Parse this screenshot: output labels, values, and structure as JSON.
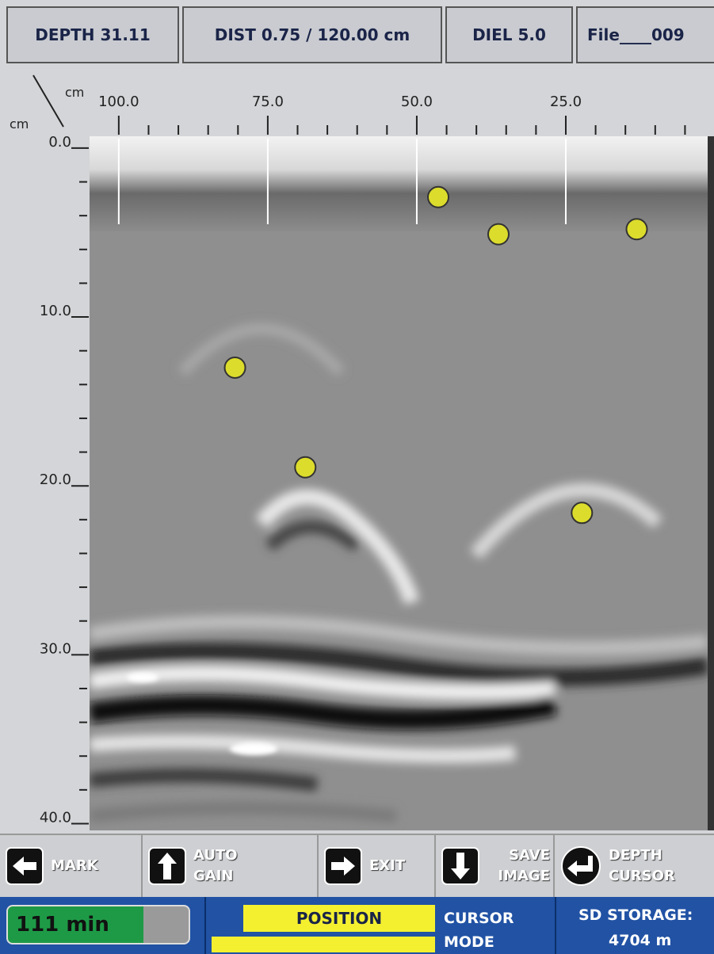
{
  "header": {
    "depth": "DEPTH 31.11",
    "dist": "DIST 0.75 / 120.00 cm",
    "diel": "DIEL 5.0",
    "file": "File____009"
  },
  "scan": {
    "x_unit": "cm",
    "y_unit": "cm",
    "xlim": [
      104.9,
      1.2
    ],
    "ylim": [
      -0.7,
      40.4
    ],
    "xticks": [
      {
        "value": 100,
        "label": "100.0"
      },
      {
        "value": 75,
        "label": "75.0"
      },
      {
        "value": 50,
        "label": "50.0"
      },
      {
        "value": 25,
        "label": "25.0"
      }
    ],
    "x_minor_ticks": [
      95,
      90,
      85,
      80,
      70,
      65,
      60,
      55,
      45,
      40,
      35,
      30,
      20,
      15,
      10,
      5
    ],
    "yticks": [
      {
        "value": 0,
        "label": "0.0"
      },
      {
        "value": 10,
        "label": "10.0"
      },
      {
        "value": 20,
        "label": "20.0"
      },
      {
        "value": 30,
        "label": "30.0"
      },
      {
        "value": 40,
        "label": "40.0"
      }
    ],
    "y_minor_ticks": [
      2,
      4,
      6,
      8,
      12,
      14,
      16,
      18,
      22,
      24,
      26,
      28,
      32,
      34,
      36,
      38
    ],
    "markers": [
      {
        "x": 46.4,
        "y": 2.9
      },
      {
        "x": 36.3,
        "y": 5.1
      },
      {
        "x": 13.1,
        "y": 4.8
      },
      {
        "x": 80.5,
        "y": 13.0
      },
      {
        "x": 68.7,
        "y": 18.9
      },
      {
        "x": 22.3,
        "y": 21.6
      }
    ],
    "marker_color": "#dcdc2c"
  },
  "buttons": [
    "MARK",
    "AUTO GAIN",
    "EXIT",
    "SAVE IMAGE",
    "DEPTH CURSOR"
  ],
  "status": {
    "battery": "111 min",
    "position": "POSITION",
    "cursor_mode": "CURSOR MODE",
    "storage_label": "SD STORAGE:",
    "storage_value": "4704 m"
  }
}
